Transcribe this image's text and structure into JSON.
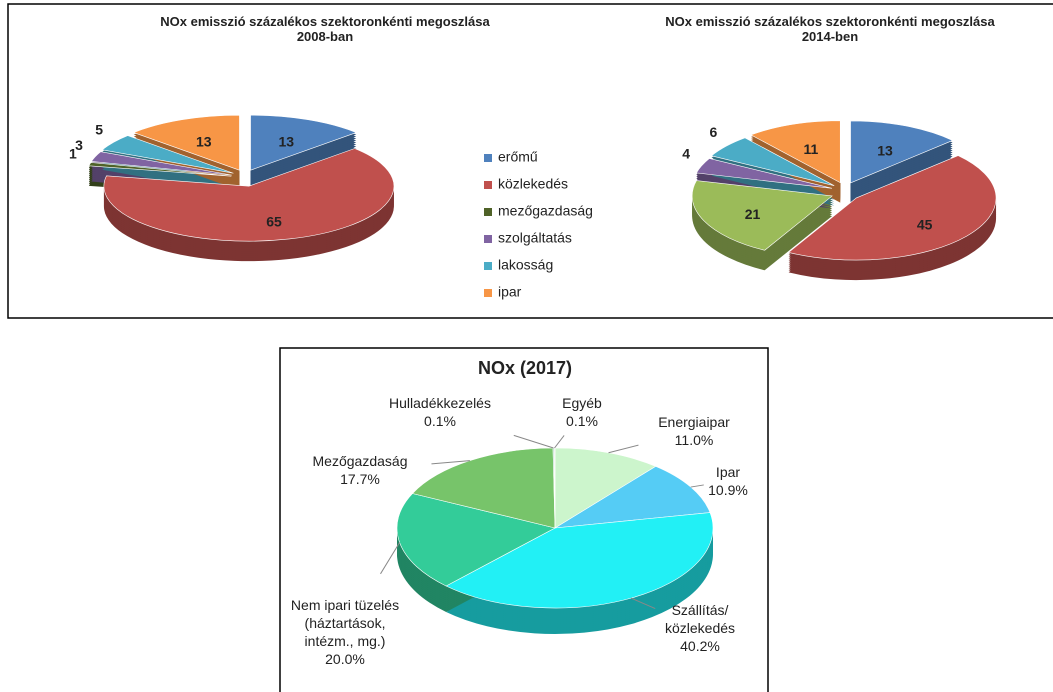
{
  "chart_data": [
    {
      "type": "pie",
      "title": "NOx emisszió százalékos szektoronkénti megoszlása 2008-ban",
      "categories": [
        "erőmű",
        "közlekedés",
        "mezőgazdaság",
        "szolgáltatás",
        "lakosság",
        "ipar"
      ],
      "values": [
        13,
        65,
        1,
        3,
        5,
        13
      ],
      "colors": [
        "#4f81bd",
        "#c0504d",
        "#4f6228",
        "#8064a2",
        "#4bacc6",
        "#f79646"
      ],
      "legend": "center"
    },
    {
      "type": "pie",
      "title": "NOx emisszió százalékos szektoronkénti megoszlása 2014-ben",
      "categories": [
        "erőmű",
        "közlekedés",
        "mezőgazdaság",
        "szolgáltatás",
        "lakosság",
        "ipar"
      ],
      "values": [
        13,
        45,
        21,
        4,
        6,
        11
      ],
      "colors": [
        "#4f81bd",
        "#c0504d",
        "#9bbb59",
        "#8064a2",
        "#4bacc6",
        "#f79646"
      ]
    },
    {
      "type": "pie",
      "title": "NOx (2017)",
      "categories": [
        "Energiaipar",
        "Ipar",
        "Szállítás/\nközlekedés",
        "Nem ipari tüzelés\n(háztartások,\nintézm., mg.)",
        "Mezőgazdaság",
        "Hulladékkezelés",
        "Egyéb"
      ],
      "values": [
        11.0,
        10.9,
        40.2,
        20.0,
        17.7,
        0.1,
        0.1
      ],
      "value_labels": [
        "11.0%",
        "10.9%",
        "40.2%",
        "20.0%",
        "17.7%",
        "0.1%",
        "0.1%"
      ],
      "colors": [
        "#ccf5cc",
        "#55ccf5",
        "#22f0f5",
        "#33cc99",
        "#77c46a",
        "#2e9e5e",
        "#dddddd"
      ]
    }
  ]
}
